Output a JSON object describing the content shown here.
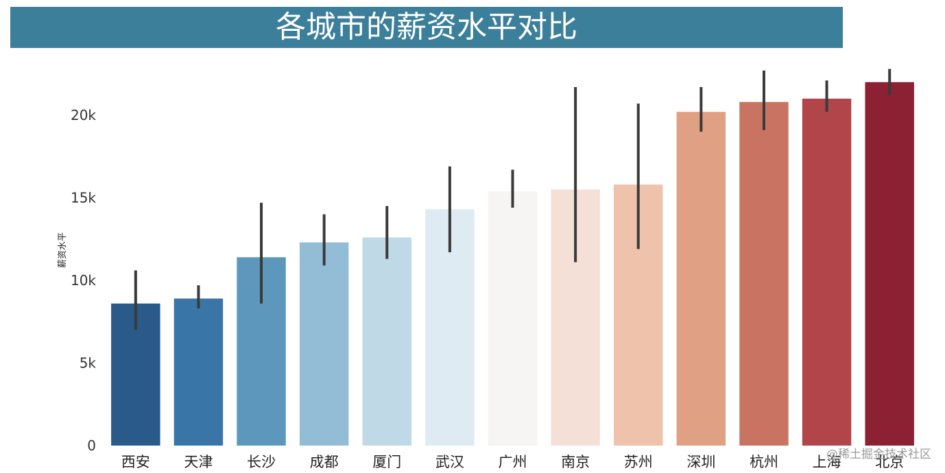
{
  "title": "各城市的薪资水平对比",
  "watermark": "@稀土掘金技术社区",
  "chart_data": {
    "type": "bar",
    "title": "各城市的薪资水平对比",
    "xlabel": "",
    "ylabel": "薪资水平",
    "ylim": [
      0,
      23000
    ],
    "yticks": [
      0,
      5000,
      10000,
      15000,
      20000
    ],
    "ytick_labels": [
      "0",
      "5k",
      "10k",
      "15k",
      "20k"
    ],
    "grid": false,
    "legend": "none",
    "categories": [
      "西安",
      "天津",
      "长沙",
      "成都",
      "厦门",
      "武汉",
      "广州",
      "南京",
      "苏州",
      "深圳",
      "杭州",
      "上海",
      "北京"
    ],
    "values": [
      8600,
      8900,
      11400,
      12300,
      12600,
      14300,
      15400,
      15500,
      15800,
      20200,
      20800,
      21000,
      22000
    ],
    "error_low": [
      7000,
      8300,
      8600,
      10900,
      11300,
      11700,
      14400,
      11100,
      11900,
      19000,
      19100,
      20200,
      21200
    ],
    "error_high": [
      10600,
      9700,
      14700,
      14000,
      14500,
      16900,
      16700,
      21700,
      20700,
      21700,
      22700,
      22100,
      22800
    ],
    "colors": [
      "#2a5a8a",
      "#3a75a8",
      "#5d98bc",
      "#93bdd6",
      "#c0d9e6",
      "#deebf2",
      "#f7f4f4",
      "#f5e0d8",
      "#efc2ac",
      "#e0a084",
      "#c97462",
      "#b14549",
      "#8b2132"
    ],
    "error_color": "#3a3a3a"
  }
}
